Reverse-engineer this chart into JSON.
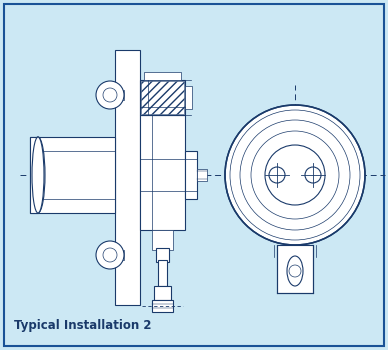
{
  "bg_color": "#cce8f4",
  "border_color": "#1a5296",
  "line_color": "#1a3a6a",
  "title": "Typical Installation 2",
  "title_fontsize": 8.5,
  "figsize": [
    3.88,
    3.5
  ],
  "dpi": 100
}
